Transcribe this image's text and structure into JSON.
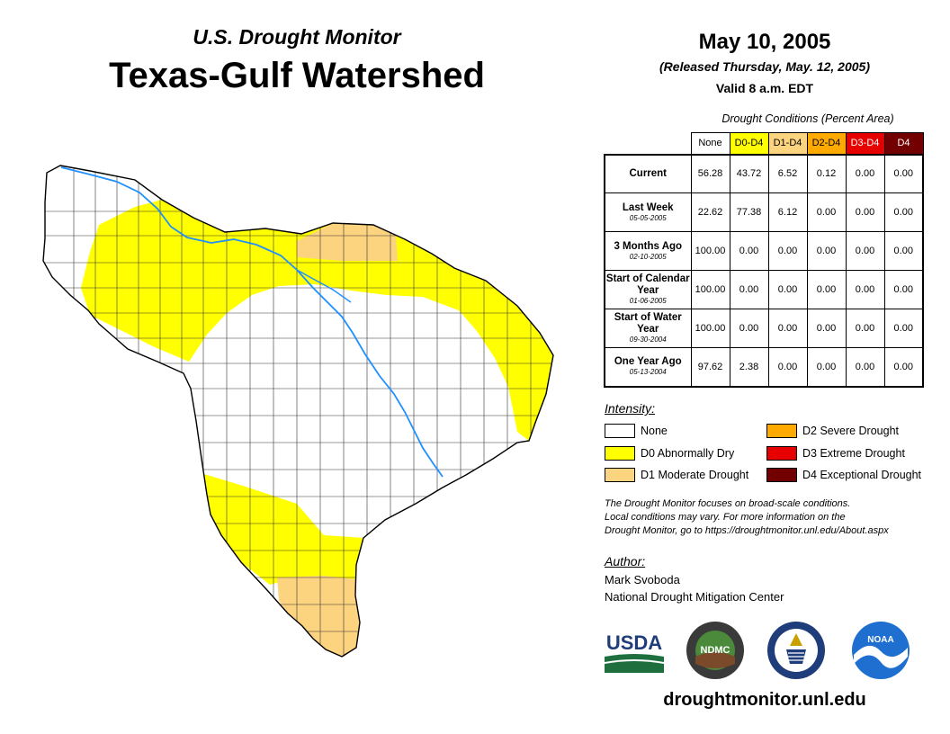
{
  "header": {
    "subtitle": "U.S. Drought Monitor",
    "title": "Texas-Gulf Watershed",
    "date": "May 10, 2005",
    "released": "(Released Thursday, May. 12, 2005)",
    "valid": "Valid 8 a.m. EDT"
  },
  "table": {
    "caption": "Drought Conditions (Percent Area)",
    "columns": [
      "None",
      "D0-D4",
      "D1-D4",
      "D2-D4",
      "D3-D4",
      "D4"
    ],
    "rows": [
      {
        "label": "Current",
        "date": "",
        "values": [
          "56.28",
          "43.72",
          "6.52",
          "0.12",
          "0.00",
          "0.00"
        ]
      },
      {
        "label": "Last Week",
        "date": "05-05-2005",
        "values": [
          "22.62",
          "77.38",
          "6.12",
          "0.00",
          "0.00",
          "0.00"
        ]
      },
      {
        "label": "3 Months Ago",
        "date": "02-10-2005",
        "values": [
          "100.00",
          "0.00",
          "0.00",
          "0.00",
          "0.00",
          "0.00"
        ]
      },
      {
        "label": "Start of Calendar Year",
        "date": "01-06-2005",
        "values": [
          "100.00",
          "0.00",
          "0.00",
          "0.00",
          "0.00",
          "0.00"
        ]
      },
      {
        "label": "Start of Water Year",
        "date": "09-30-2004",
        "values": [
          "100.00",
          "0.00",
          "0.00",
          "0.00",
          "0.00",
          "0.00"
        ]
      },
      {
        "label": "One Year Ago",
        "date": "05-13-2004",
        "values": [
          "97.62",
          "2.38",
          "0.00",
          "0.00",
          "0.00",
          "0.00"
        ]
      }
    ]
  },
  "legend": {
    "title": "Intensity:",
    "items": [
      {
        "label": "None",
        "color": "#ffffff"
      },
      {
        "label": "D0 Abnormally Dry",
        "color": "#ffff00"
      },
      {
        "label": "D1 Moderate Drought",
        "color": "#fcd37f"
      },
      {
        "label": "D2 Severe Drought",
        "color": "#ffaa00"
      },
      {
        "label": "D3 Extreme Drought",
        "color": "#e60000"
      },
      {
        "label": "D4 Exceptional Drought",
        "color": "#730000"
      }
    ]
  },
  "note": {
    "line1": "The Drought Monitor focuses on broad-scale conditions.",
    "line2": "Local conditions may vary. For more information on the",
    "line3": "Drought Monitor, go to https://droughtmonitor.unl.edu/About.aspx"
  },
  "author": {
    "title": "Author:",
    "name": "Mark Svoboda",
    "org": "National Drought Mitigation Center"
  },
  "logos": {
    "usda": "USDA",
    "ndmc": "NDMC",
    "noaa": "NOAA"
  },
  "footer": {
    "url": "droughtmonitor.unl.edu"
  }
}
